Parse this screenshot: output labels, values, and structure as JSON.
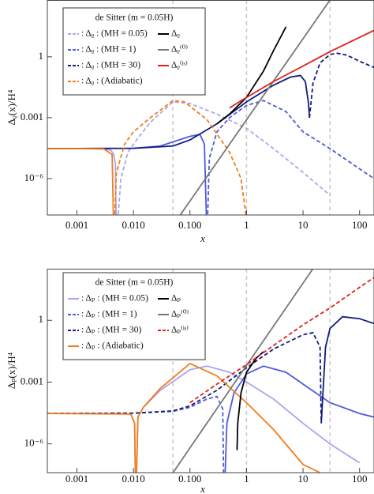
{
  "chart_data": [
    {
      "type": "line",
      "ylabel": "Δᵨ(x)/H⁴",
      "xlabel": "x",
      "log_x": true,
      "log_y": true,
      "xlim": [
        0.0003,
        180
      ],
      "ylim": [
        1.6e-08,
        630
      ],
      "xticks": [
        0.001,
        {
          "value": 0.01,
          "label": "0.010"
        },
        {
          "value": 0.1,
          "label": "0.100"
        },
        1,
        10,
        100
      ],
      "yticks": [
        {
          "value": 1e-06,
          "label": "10⁻⁶"
        },
        0.001,
        1
      ],
      "vlines": [
        0.05,
        1,
        30
      ],
      "legend_title": "de Sitter (m = 0.05H)",
      "series": [
        {
          "name": ": Δᵨ : (MH = 0.05)",
          "color": "#aaa6ee",
          "legend_dash": true,
          "segments": [
            {
              "dashed": false,
              "x": [
                0.0003,
                0.001,
                0.003,
                0.004,
                0.0045,
                0.0048,
                0.005
              ],
              "values": [
                3e-05,
                3e-05,
                2.9e-05,
                2.5e-05,
                1.5e-05,
                5e-06,
                1e-09
              ]
            },
            {
              "dashed": true,
              "x": [
                0.005,
                0.006,
                0.008,
                0.012,
                0.02,
                0.05,
                0.1,
                0.3,
                1,
                3,
                10,
                30
              ],
              "values": [
                1e-09,
                1e-06,
                2e-05,
                0.0001,
                0.0006,
                0.006,
                0.005,
                0.0015,
                0.0003,
                3e-05,
                2e-06,
                1.5e-07
              ]
            }
          ]
        },
        {
          "name": ": Δᵨ : (MH = 1)",
          "color": "#4d5bd6",
          "legend_dash": true,
          "segments": [
            {
              "dashed": false,
              "x": [
                0.0003,
                0.01,
                0.03,
                0.1,
                0.15,
                0.18,
                0.2
              ],
              "values": [
                3e-05,
                3.1e-05,
                4e-05,
                0.00012,
                0.00015,
                5e-05,
                1e-09
              ]
            },
            {
              "dashed": true,
              "x": [
                0.2,
                0.22,
                0.3,
                0.5,
                1,
                2,
                5,
                10,
                30,
                100,
                180
              ],
              "values": [
                1e-09,
                1e-05,
                0.0002,
                0.001,
                0.004,
                0.007,
                0.002,
                0.0002,
                3e-05,
                3e-06,
                1e-06
              ]
            }
          ]
        },
        {
          "name": ": Δᵨ : (MH = 30)",
          "color": "#101c7a",
          "legend_dash": true,
          "segments": [
            {
              "dashed": false,
              "x": [
                0.0003,
                0.01,
                0.05,
                0.1,
                0.3,
                1,
                3,
                6,
                9,
                11,
                12.5,
                13
              ],
              "values": [
                3e-05,
                3.1e-05,
                4e-05,
                8e-05,
                0.0005,
                0.006,
                0.04,
                0.1,
                0.12,
                0.06,
                0.005,
                0.001
              ]
            },
            {
              "dashed": true,
              "x": [
                13,
                15,
                20,
                30,
                40,
                60,
                100,
                180
              ],
              "values": [
                0.001,
                0.05,
                0.5,
                1.3,
                1.5,
                1.2,
                0.6,
                0.3
              ]
            }
          ]
        },
        {
          "name": ": Δᵨ : (Adiabatic)",
          "color": "#f07d1a",
          "legend_dash": true,
          "segments": [
            {
              "dashed": false,
              "x": [
                0.0003,
                0.001,
                0.003,
                0.0042,
                0.0045
              ],
              "values": [
                3e-05,
                3e-05,
                2.9e-05,
                1.5e-05,
                1e-09
              ]
            },
            {
              "dashed": true,
              "x": [
                0.0045,
                0.005,
                0.007,
                0.01,
                0.02,
                0.05,
                0.08,
                0.2,
                0.5,
                0.8,
                1
              ],
              "values": [
                1e-09,
                2e-06,
                5e-05,
                0.0002,
                0.001,
                0.007,
                0.006,
                0.0008,
                2e-05,
                1e-06,
                1e-08
              ]
            }
          ]
        },
        {
          "name": "Δᵨ",
          "color": "#000000",
          "legend_dash": false,
          "segments": [
            {
              "dashed": false,
              "x": [
                0.3,
                0.5,
                1,
                2,
                3,
                5
              ],
              "values": [
                0.0005,
                0.0015,
                0.01,
                0.2,
                2,
                30
              ]
            }
          ]
        },
        {
          "name": "Δᵨ⁽⁰⁾",
          "color": "#777777",
          "legend_dash": false,
          "segments": [
            {
              "dashed": false,
              "x": [
                0.04,
                0.1,
                1,
                10,
                40
              ],
              "values": [
                2e-09,
                7.8e-08,
                0.00078,
                7.8,
                2000
              ]
            }
          ]
        },
        {
          "name": "Δᵨ⁽ˡˢ⁾",
          "color": "#e0201b",
          "legend_dash": false,
          "segments": [
            {
              "dashed": false,
              "x": [
                0.5,
                1,
                3,
                10,
                30,
                100,
                180
              ],
              "values": [
                0.003,
                0.01,
                0.06,
                0.35,
                1.8,
                9,
                20
              ]
            }
          ]
        }
      ]
    },
    {
      "type": "line",
      "ylabel": "Δₚ(x)/H⁴",
      "xlabel": "x",
      "log_x": true,
      "log_y": true,
      "xlim": [
        0.0003,
        180
      ],
      "ylim": [
        4e-08,
        320
      ],
      "xticks": [
        0.001,
        {
          "value": 0.01,
          "label": "0.010"
        },
        {
          "value": 0.1,
          "label": "0.100"
        },
        1,
        10,
        100
      ],
      "yticks": [
        {
          "value": 1e-06,
          "label": "10⁻⁶"
        },
        0.001,
        1
      ],
      "vlines": [
        0.05,
        1,
        30
      ],
      "legend_title": "de Sitter (m = 0.05H)",
      "series": [
        {
          "name": ": Δₚ : (MH = 0.05)",
          "color": "#aaa6ee",
          "legend_dash": false,
          "segments": [
            {
              "dashed": false,
              "x": [
                0.0003,
                0.005,
                0.009,
                0.0105,
                0.011
              ],
              "values": [
                3e-05,
                3e-05,
                2.8e-05,
                1e-05,
                1e-09
              ]
            },
            {
              "dashed": false,
              "x": [
                0.011,
                0.012,
                0.015,
                0.03,
                0.1,
                0.2,
                0.5,
                1,
                3,
                10,
                30,
                100
              ],
              "values": [
                1e-09,
                2e-05,
                6e-05,
                0.0004,
                0.004,
                0.006,
                0.003,
                0.001,
                0.00015,
                1e-05,
                1e-06,
                1.2e-07
              ]
            }
          ]
        },
        {
          "name": ": Δₚ : (MH = 1)",
          "color": "#4d5bd6",
          "legend_dash": true,
          "segments": [
            {
              "dashed": true,
              "x": [
                0.0003,
                0.01,
                0.05,
                0.1,
                0.2,
                0.3,
                0.38,
                0.4
              ],
              "values": [
                3e-05,
                3.1e-05,
                3.8e-05,
                6e-05,
                0.00015,
                0.0002,
                5e-05,
                1e-09
              ]
            },
            {
              "dashed": false,
              "x": [
                0.4,
                0.45,
                0.6,
                1,
                2,
                5,
                10,
                30,
                100,
                180
              ],
              "values": [
                1e-09,
                1e-05,
                0.0003,
                0.0025,
                0.006,
                0.003,
                0.0008,
                0.0001,
                3e-05,
                2e-05
              ]
            }
          ]
        },
        {
          "name": ": Δₚ : (MH = 30)",
          "color": "#101c7a",
          "legend_dash": true,
          "segments": [
            {
              "dashed": true,
              "x": [
                0.0003,
                0.01,
                0.05,
                0.1,
                0.3,
                1,
                3,
                10,
                15,
                20,
                21
              ],
              "values": [
                3e-05,
                3.1e-05,
                4e-05,
                7e-05,
                0.0004,
                0.005,
                0.04,
                0.2,
                0.25,
                0.05,
                1e-05
              ]
            },
            {
              "dashed": false,
              "x": [
                21,
                25,
                30,
                50,
                100,
                180
              ],
              "values": [
                1e-05,
                0.05,
                0.4,
                1.5,
                1.2,
                0.7
              ]
            }
          ]
        },
        {
          "name": ": Δₚ : (Adiabatic)",
          "color": "#f07d1a",
          "legend_dash": false,
          "segments": [
            {
              "dashed": false,
              "x": [
                0.0003,
                0.009,
                0.0105,
                0.011
              ],
              "values": [
                3e-05,
                2.8e-05,
                1e-05,
                1e-09
              ]
            },
            {
              "dashed": false,
              "x": [
                0.011,
                0.012,
                0.015,
                0.03,
                0.1,
                0.3,
                1,
                3,
                10,
                20
              ],
              "values": [
                1e-09,
                2e-05,
                6e-05,
                0.0005,
                0.008,
                0.002,
                0.0001,
                5e-06,
                1e-07,
                4e-08
              ]
            }
          ]
        },
        {
          "name": "Δₚ",
          "color": "#000000",
          "legend_dash": false,
          "segments": [
            {
              "dashed": false,
              "x": [
                0.68,
                0.7,
                0.8,
                1,
                1.5,
                2
              ],
              "values": [
                5e-07,
                1e-05,
                0.0003,
                0.003,
                0.015,
                0.03
              ]
            }
          ]
        },
        {
          "name": "Δₚ⁽⁰⁾",
          "color": "#777777",
          "legend_dash": false,
          "segments": [
            {
              "dashed": false,
              "x": [
                0.04,
                0.1,
                1,
                10,
                40
              ],
              "values": [
                1.6e-08,
                6.4e-07,
                0.0064,
                64,
                16384
              ]
            }
          ]
        },
        {
          "name": "Δₚ⁽ˡˢ⁾",
          "color": "#e0201b",
          "legend_dash": true,
          "segments": [
            {
              "dashed": true,
              "x": [
                0.1,
                0.3,
                1,
                3,
                10,
                30,
                100,
                180
              ],
              "values": [
                0.0001,
                0.0008,
                0.007,
                0.06,
                0.6,
                4,
                40,
                120
              ]
            }
          ]
        }
      ]
    }
  ]
}
